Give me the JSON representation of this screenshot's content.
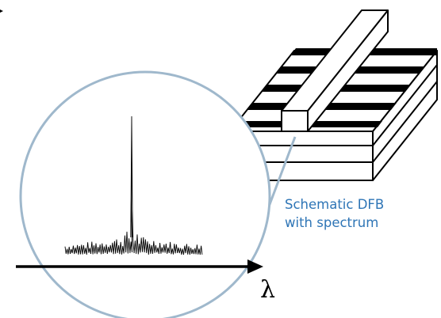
{
  "caption": {
    "line1": "Schematic DFB",
    "line2": "with spectrum"
  },
  "axis": {
    "symbol": "λ"
  },
  "colors": {
    "caption": "#2e75b6",
    "zoom_circle": "#9fb8cc",
    "ink": "#000000"
  }
}
